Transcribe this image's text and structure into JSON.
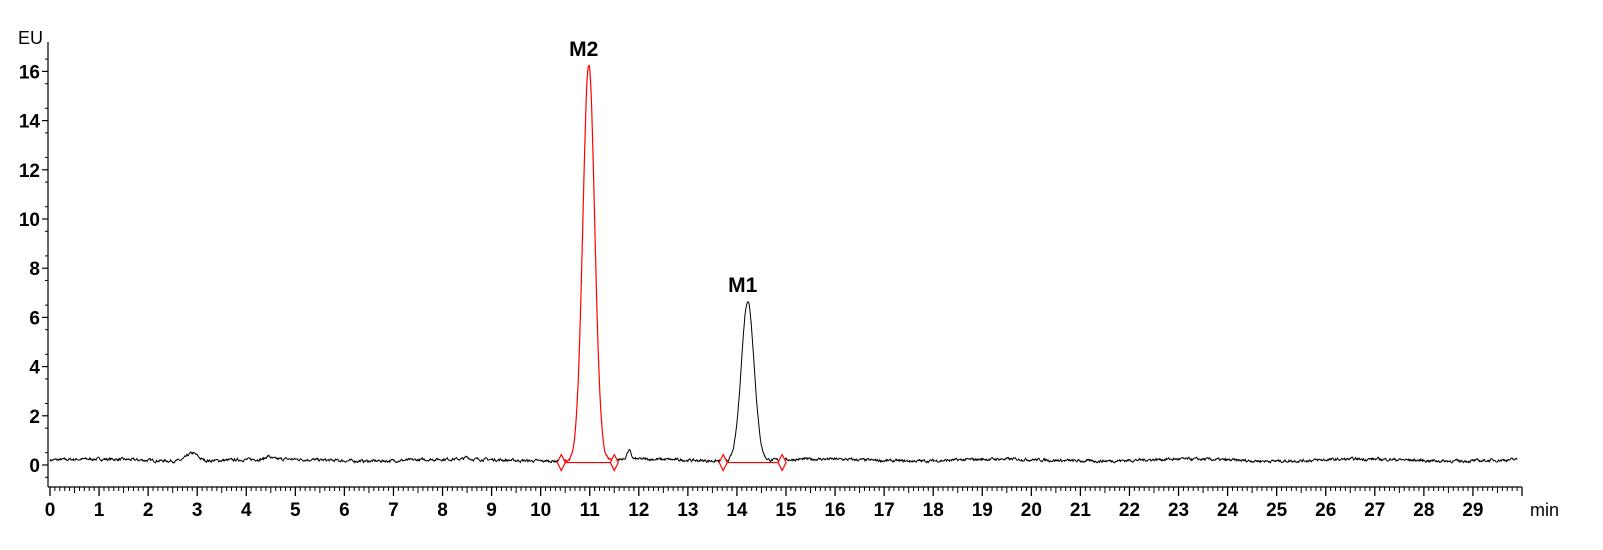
{
  "chart_data": {
    "type": "line",
    "title": "",
    "xlabel": "min",
    "ylabel": "EU",
    "xlim": [
      0,
      30
    ],
    "ylim": [
      -0.8,
      17
    ],
    "x_ticks": [
      "0",
      "1",
      "2",
      "3",
      "4",
      "5",
      "6",
      "7",
      "8",
      "9",
      "10",
      "11",
      "12",
      "13",
      "14",
      "15",
      "16",
      "17",
      "18",
      "19",
      "20",
      "21",
      "22",
      "23",
      "24",
      "25",
      "26",
      "27",
      "28",
      "29"
    ],
    "y_ticks": [
      "0",
      "2",
      "4",
      "6",
      "8",
      "10",
      "12",
      "14",
      "16"
    ],
    "grid": false,
    "baseline_level": 0.2,
    "baseline_bumps": [
      {
        "x": 2.9,
        "height": 0.32,
        "width": 0.28
      },
      {
        "x": 4.45,
        "height": 0.12,
        "width": 0.12
      },
      {
        "x": 8.5,
        "height": 0.08,
        "width": 0.1
      },
      {
        "x": 11.8,
        "height": 0.35,
        "width": 0.1
      }
    ],
    "peaks": [
      {
        "name": "M2",
        "label": "M2",
        "retention_time": 10.98,
        "height": 16.3,
        "sigma": 0.12,
        "start": 10.42,
        "end": 11.5,
        "color": "#ff0000"
      },
      {
        "name": "M1",
        "label": "M1",
        "retention_time": 14.22,
        "height": 6.7,
        "sigma": 0.13,
        "start": 13.72,
        "end": 14.92,
        "color": "#000000"
      }
    ],
    "trace_color": "#000000",
    "integration_color": "#ff0000"
  }
}
